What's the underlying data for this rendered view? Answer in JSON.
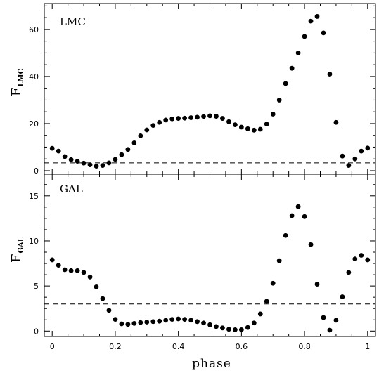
{
  "chart_data": [
    {
      "type": "scatter",
      "panel_label": "LMC",
      "ylabel_main": "F",
      "ylabel_sub": "LMC",
      "xlabel": "",
      "xlim": [
        -0.025,
        1.025
      ],
      "ylim": [
        -1.5,
        71
      ],
      "yticks": [
        0,
        20,
        40,
        60
      ],
      "ytick_labels": [
        "0",
        "20",
        "40",
        "60"
      ],
      "xticks": [
        0,
        0.2,
        0.4,
        0.6,
        0.8,
        1
      ],
      "xtick_labels": [],
      "reference_line_y": 3.3,
      "x": [
        0.0,
        0.02,
        0.04,
        0.06,
        0.08,
        0.1,
        0.12,
        0.14,
        0.16,
        0.18,
        0.2,
        0.22,
        0.24,
        0.26,
        0.28,
        0.3,
        0.32,
        0.34,
        0.36,
        0.38,
        0.4,
        0.42,
        0.44,
        0.46,
        0.48,
        0.5,
        0.52,
        0.54,
        0.56,
        0.58,
        0.6,
        0.62,
        0.64,
        0.66,
        0.68,
        0.7,
        0.72,
        0.74,
        0.76,
        0.78,
        0.8,
        0.82,
        0.84,
        0.86,
        0.88,
        0.9,
        0.92,
        0.94,
        0.96,
        0.98,
        1.0
      ],
      "y": [
        9.5,
        8.3,
        6.0,
        4.7,
        4.0,
        3.2,
        2.5,
        1.9,
        2.2,
        3.3,
        4.8,
        6.8,
        9.0,
        11.8,
        14.8,
        17.3,
        19.2,
        20.5,
        21.5,
        22.0,
        22.2,
        22.3,
        22.5,
        22.7,
        23.0,
        23.3,
        23.1,
        22.2,
        20.8,
        19.5,
        18.5,
        17.8,
        17.2,
        17.6,
        19.8,
        24.0,
        30.0,
        37.0,
        43.5,
        50.0,
        57.0,
        63.5,
        65.5,
        58.5,
        41.0,
        20.5,
        6.2,
        2.2,
        5.0,
        8.3,
        9.6
      ]
    },
    {
      "type": "scatter",
      "panel_label": "GAL",
      "ylabel_main": "F",
      "ylabel_sub": "GAL",
      "xlabel": "phase",
      "xlim": [
        -0.025,
        1.025
      ],
      "ylim": [
        -0.6,
        17.4
      ],
      "yticks": [
        0,
        5,
        10,
        15
      ],
      "ytick_labels": [
        "0",
        "5",
        "10",
        "15"
      ],
      "xticks": [
        0,
        0.2,
        0.4,
        0.6,
        0.8,
        1
      ],
      "xtick_labels": [
        "0",
        "0.2",
        "0.4",
        "0.6",
        "0.8",
        "1"
      ],
      "reference_line_y": 3.0,
      "x": [
        0.0,
        0.02,
        0.04,
        0.06,
        0.08,
        0.1,
        0.12,
        0.14,
        0.16,
        0.18,
        0.2,
        0.22,
        0.24,
        0.26,
        0.28,
        0.3,
        0.32,
        0.34,
        0.36,
        0.38,
        0.4,
        0.42,
        0.44,
        0.46,
        0.48,
        0.5,
        0.52,
        0.54,
        0.56,
        0.58,
        0.6,
        0.62,
        0.64,
        0.66,
        0.68,
        0.7,
        0.72,
        0.74,
        0.76,
        0.78,
        0.8,
        0.82,
        0.84,
        0.86,
        0.88,
        0.9,
        0.92,
        0.94,
        0.96,
        0.98,
        1.0
      ],
      "y": [
        7.9,
        7.3,
        6.8,
        6.7,
        6.7,
        6.5,
        6.0,
        4.9,
        3.6,
        2.3,
        1.3,
        0.8,
        0.75,
        0.85,
        0.95,
        1.0,
        1.05,
        1.1,
        1.2,
        1.3,
        1.35,
        1.3,
        1.2,
        1.05,
        0.9,
        0.7,
        0.5,
        0.35,
        0.2,
        0.15,
        0.15,
        0.4,
        0.9,
        1.9,
        3.3,
        5.3,
        7.8,
        10.6,
        12.8,
        13.8,
        12.7,
        9.6,
        5.2,
        1.5,
        0.1,
        1.2,
        3.8,
        6.5,
        8.0,
        8.4,
        7.9
      ]
    }
  ]
}
